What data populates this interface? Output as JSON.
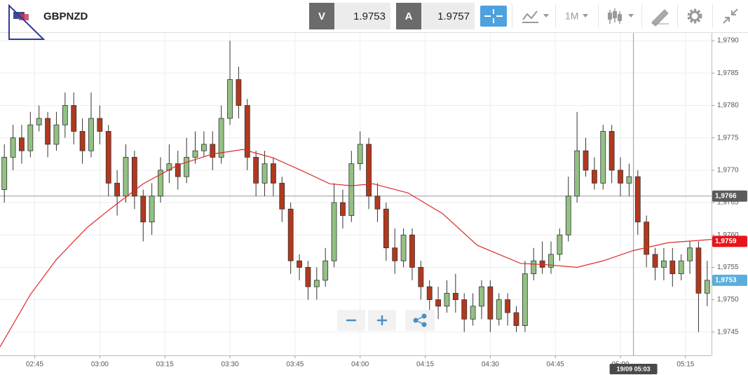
{
  "header": {
    "symbol": "GBPNZD",
    "bid_label": "V",
    "bid": 1.9753,
    "ask_label": "A",
    "ask": 1.9757,
    "timeframe": "1M"
  },
  "chart_data": {
    "type": "candlestick",
    "x": [
      "02:38",
      "02:40",
      "02:42",
      "02:44",
      "02:46",
      "02:48",
      "02:50",
      "02:52",
      "02:54",
      "02:56",
      "02:58",
      "03:00",
      "03:02",
      "03:04",
      "03:06",
      "03:08",
      "03:10",
      "03:12",
      "03:14",
      "03:16",
      "03:18",
      "03:20",
      "03:22",
      "03:24",
      "03:26",
      "03:28",
      "03:30",
      "03:32",
      "03:34",
      "03:36",
      "03:38",
      "03:40",
      "03:42",
      "03:44",
      "03:46",
      "03:48",
      "03:50",
      "03:52",
      "03:54",
      "03:56",
      "03:58",
      "04:00",
      "04:02",
      "04:04",
      "04:06",
      "04:08",
      "04:10",
      "04:12",
      "04:14",
      "04:16",
      "04:18",
      "04:20",
      "04:22",
      "04:24",
      "04:26",
      "04:28",
      "04:30",
      "04:32",
      "04:34",
      "04:36",
      "04:38",
      "04:40",
      "04:42",
      "04:44",
      "04:46",
      "04:48",
      "04:50",
      "04:52",
      "04:54",
      "04:56",
      "04:58",
      "05:00",
      "05:02",
      "05:04",
      "05:06",
      "05:08",
      "05:10",
      "05:12",
      "05:14",
      "05:16",
      "05:18",
      "05:20"
    ],
    "open": [
      1.9767,
      1.9772,
      1.9775,
      1.9773,
      1.9777,
      1.9778,
      1.9774,
      1.9777,
      1.978,
      1.9776,
      1.9773,
      1.9778,
      1.9776,
      1.9768,
      1.9766,
      1.9772,
      1.9766,
      1.9762,
      1.9766,
      1.977,
      1.9771,
      1.9769,
      1.9772,
      1.9773,
      1.9774,
      1.9772,
      1.9778,
      1.9784,
      1.978,
      1.9772,
      1.9768,
      1.9771,
      1.9768,
      1.9764,
      1.9756,
      1.9755,
      1.9752,
      1.9753,
      1.9756,
      1.9765,
      1.9763,
      1.9771,
      1.9774,
      1.9766,
      1.9764,
      1.9758,
      1.9756,
      1.976,
      1.9755,
      1.9752,
      1.975,
      1.9749,
      1.9751,
      1.975,
      1.9747,
      1.9749,
      1.9752,
      1.9747,
      1.975,
      1.9748,
      1.9746,
      1.9754,
      1.9756,
      1.9755,
      1.9757,
      1.976,
      1.9766,
      1.9773,
      1.977,
      1.9768,
      1.9776,
      1.977,
      1.9768,
      1.9769,
      1.9762,
      1.9757,
      1.9755,
      1.9756,
      1.9754,
      1.9756,
      1.9758,
      1.9751
    ],
    "high": [
      1.9774,
      1.9777,
      1.9777,
      1.9779,
      1.978,
      1.9779,
      1.9779,
      1.9782,
      1.9782,
      1.9778,
      1.9782,
      1.978,
      1.9777,
      1.977,
      1.9774,
      1.9773,
      1.9767,
      1.9768,
      1.9772,
      1.9774,
      1.9773,
      1.9775,
      1.9776,
      1.9776,
      1.9776,
      1.978,
      1.979,
      1.9786,
      1.9781,
      1.9773,
      1.9773,
      1.9772,
      1.9769,
      1.9765,
      1.9757,
      1.9756,
      1.9755,
      1.9758,
      1.9768,
      1.9767,
      1.9773,
      1.9776,
      1.9775,
      1.9768,
      1.9765,
      1.9761,
      1.9761,
      1.9761,
      1.9756,
      1.9753,
      1.9752,
      1.9753,
      1.9754,
      1.9751,
      1.9751,
      1.9753,
      1.9753,
      1.9751,
      1.9751,
      1.9749,
      1.9756,
      1.9758,
      1.9759,
      1.9759,
      1.9761,
      1.9769,
      1.9779,
      1.9775,
      1.9772,
      1.9777,
      1.9777,
      1.9772,
      1.9771,
      1.977,
      1.9763,
      1.9758,
      1.9758,
      1.9758,
      1.9757,
      1.9759,
      1.9759,
      1.9756
    ],
    "low": [
      1.9765,
      1.977,
      1.9771,
      1.9772,
      1.9776,
      1.9772,
      1.9773,
      1.9775,
      1.9774,
      1.9771,
      1.9772,
      1.9774,
      1.9766,
      1.9763,
      1.9765,
      1.9764,
      1.9759,
      1.976,
      1.9765,
      1.9768,
      1.9767,
      1.9768,
      1.9771,
      1.9772,
      1.977,
      1.9771,
      1.9777,
      1.9778,
      1.977,
      1.9766,
      1.9766,
      1.9766,
      1.9762,
      1.9754,
      1.9753,
      1.975,
      1.975,
      1.9752,
      1.9755,
      1.9761,
      1.9762,
      1.977,
      1.9764,
      1.9762,
      1.9756,
      1.9754,
      1.9755,
      1.9753,
      1.975,
      1.9748,
      1.9747,
      1.9748,
      1.9748,
      1.9745,
      1.9746,
      1.9747,
      1.9745,
      1.9746,
      1.9746,
      1.9745,
      1.9745,
      1.9753,
      1.9754,
      1.9754,
      1.9756,
      1.9759,
      1.9765,
      1.9769,
      1.9767,
      1.9767,
      1.9768,
      1.9766,
      1.9766,
      1.976,
      1.9755,
      1.9753,
      1.9753,
      1.9752,
      1.9753,
      1.9754,
      1.9745,
      1.9749
    ],
    "close": [
      1.9772,
      1.9775,
      1.9773,
      1.9777,
      1.9778,
      1.9774,
      1.9777,
      1.978,
      1.9776,
      1.9773,
      1.9778,
      1.9776,
      1.9768,
      1.9766,
      1.9772,
      1.9766,
      1.9762,
      1.9766,
      1.977,
      1.9771,
      1.9769,
      1.9772,
      1.9773,
      1.9774,
      1.9772,
      1.9778,
      1.9784,
      1.978,
      1.9772,
      1.9768,
      1.9771,
      1.9768,
      1.9764,
      1.9756,
      1.9755,
      1.9752,
      1.9753,
      1.9756,
      1.9765,
      1.9763,
      1.9771,
      1.9774,
      1.9766,
      1.9764,
      1.9758,
      1.9756,
      1.976,
      1.9755,
      1.9752,
      1.975,
      1.9749,
      1.9751,
      1.975,
      1.9747,
      1.9749,
      1.9752,
      1.9747,
      1.975,
      1.9748,
      1.9746,
      1.9754,
      1.9756,
      1.9755,
      1.9757,
      1.976,
      1.9766,
      1.9773,
      1.977,
      1.9768,
      1.9776,
      1.977,
      1.9768,
      1.9769,
      1.9762,
      1.9757,
      1.9755,
      1.9756,
      1.9754,
      1.9756,
      1.9758,
      1.9751,
      1.9753
    ],
    "up_color": "#93c184",
    "down_color": "#b2381e",
    "moving_average": {
      "color": "#dd2a2a",
      "x": [
        "02:37",
        "02:44",
        "02:50",
        "02:57",
        "03:02",
        "03:10",
        "03:18",
        "03:26",
        "03:33",
        "03:40",
        "03:47",
        "03:53",
        "03:58",
        "04:03",
        "04:11",
        "04:19",
        "04:27",
        "04:37",
        "04:43",
        "04:50",
        "04:56",
        "05:03",
        "05:11",
        "05:21"
      ],
      "values": [
        1.97427,
        1.97508,
        1.97562,
        1.97611,
        1.97638,
        1.97679,
        1.97708,
        1.97725,
        1.97732,
        1.97719,
        1.97698,
        1.97679,
        1.97676,
        1.97679,
        1.97665,
        1.97633,
        1.97584,
        1.97556,
        1.97554,
        1.9755,
        1.9756,
        1.97576,
        1.97588,
        1.97593
      ]
    },
    "xlim": [
      "02:37",
      "05:21"
    ],
    "xticks": [
      "02:45",
      "03:00",
      "03:15",
      "03:30",
      "03:45",
      "04:00",
      "04:15",
      "04:30",
      "04:45",
      "05:00",
      "05:15"
    ],
    "ylim": [
      1.97414,
      1.97912
    ],
    "yticks": [
      {
        "value": 1.979,
        "label": "1,9790"
      },
      {
        "value": 1.9785,
        "label": "1,9785"
      },
      {
        "value": 1.978,
        "label": "1,9780"
      },
      {
        "value": 1.9775,
        "label": "1,9775"
      },
      {
        "value": 1.977,
        "label": "1,9770"
      },
      {
        "value": 1.9765,
        "label": "1,9765"
      },
      {
        "value": 1.976,
        "label": "1,9760"
      },
      {
        "value": 1.9755,
        "label": "1,9755"
      },
      {
        "value": 1.975,
        "label": "1,9750"
      },
      {
        "value": 1.9745,
        "label": "1,9745"
      }
    ],
    "grid": true,
    "price_markers": [
      {
        "value": 1.9766,
        "label": "1,9766",
        "color": "#5b5b5b"
      },
      {
        "value": 1.9759,
        "label": "1,9759",
        "color": "#e8141b"
      },
      {
        "value": 1.9753,
        "label": "1,9753",
        "color": "#5aaedc"
      }
    ],
    "crosshair": {
      "time": "05:03",
      "label": "19/09 05:03",
      "price": 1.9766
    }
  }
}
